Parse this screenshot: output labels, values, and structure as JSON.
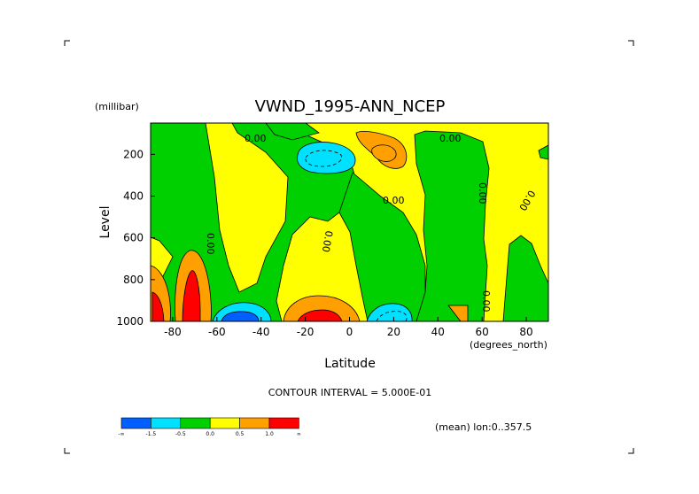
{
  "chart_data": {
    "type": "contour",
    "title": "VWND_1995-ANN_NCEP",
    "xlabel": "Latitude",
    "x_units": "(degrees_north)",
    "ylabel": "Level",
    "y_units": "(millibar)",
    "xlim": [
      -90,
      90
    ],
    "ylim": [
      1000,
      50
    ],
    "x_ticks": [
      "-80",
      "-60",
      "-40",
      "-20",
      "0",
      "20",
      "40",
      "60",
      "80"
    ],
    "y_ticks": [
      "200",
      "400",
      "600",
      "800",
      "1000"
    ],
    "contour_interval_text": "CONTOUR INTERVAL = 5.000E-01",
    "mean_text": "(mean) lon:0..357.5",
    "contour_labels": [
      "0.00",
      "0.00",
      "0.00",
      "0.00",
      "0.00",
      "0.00",
      "0.00",
      "0.00"
    ],
    "colorbar": {
      "labels": [
        "-∞",
        "-1.5",
        "-0.5",
        "0.0",
        "0.5",
        "1.0",
        "∞"
      ],
      "colors": [
        "#0060ff",
        "#00e0ff",
        "#00d000",
        "#ffff00",
        "#ffa000",
        "#ff0000"
      ]
    },
    "shading_levels": [
      {
        "name": "< -1.5",
        "color": "#0060ff"
      },
      {
        "name": "-1.5 to -0.5",
        "color": "#00e0ff"
      },
      {
        "name": "-0.5 to 0.0",
        "color": "#00d000"
      },
      {
        "name": "0.0 to 0.5",
        "color": "#ffff00"
      },
      {
        "name": "0.5 to 1.0",
        "color": "#ffa000"
      },
      {
        "name": "> 1.0",
        "color": "#ff0000"
      }
    ]
  }
}
